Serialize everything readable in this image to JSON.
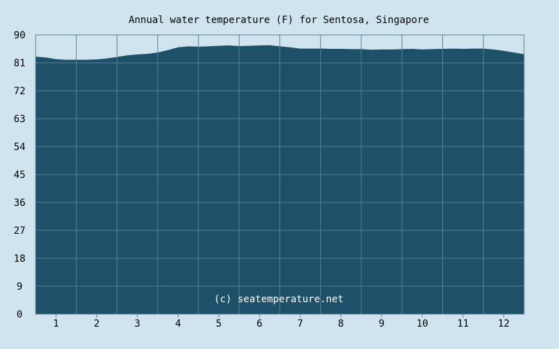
{
  "chart_data": {
    "type": "area",
    "title": "Annual water temperature (F) for Sentosa, Singapore",
    "watermark": "(c) seatemperature.net",
    "xlabel": "",
    "ylabel": "",
    "ylim": [
      0,
      90
    ],
    "y_ticks": [
      0,
      9,
      18,
      27,
      36,
      45,
      54,
      63,
      72,
      81,
      90
    ],
    "x_ticks": [
      "1",
      "2",
      "3",
      "4",
      "5",
      "6",
      "7",
      "8",
      "9",
      "10",
      "11",
      "12"
    ],
    "xlim": [
      0.5,
      12.5
    ],
    "grid": true,
    "colors": {
      "fill": "#1f5069",
      "background": "#cfe4ef",
      "grid": "#5a7f95"
    },
    "x": [
      0.5,
      0.75,
      1.0,
      1.25,
      1.5,
      1.75,
      2.0,
      2.25,
      2.5,
      2.75,
      3.0,
      3.25,
      3.5,
      3.75,
      4.0,
      4.25,
      4.5,
      4.75,
      5.0,
      5.25,
      5.5,
      5.75,
      6.0,
      6.25,
      6.5,
      6.75,
      7.0,
      7.25,
      7.5,
      7.75,
      8.0,
      8.25,
      8.5,
      8.75,
      9.0,
      9.25,
      9.5,
      9.75,
      10.0,
      10.25,
      10.5,
      10.75,
      11.0,
      11.25,
      11.5,
      11.75,
      12.0,
      12.25,
      12.5
    ],
    "y": [
      83.0,
      82.7,
      82.2,
      82.0,
      82.0,
      82.0,
      82.1,
      82.4,
      82.9,
      83.4,
      83.7,
      83.9,
      84.3,
      85.1,
      86.0,
      86.3,
      86.2,
      86.3,
      86.5,
      86.6,
      86.4,
      86.5,
      86.6,
      86.7,
      86.3,
      86.0,
      85.6,
      85.6,
      85.6,
      85.5,
      85.5,
      85.4,
      85.4,
      85.2,
      85.3,
      85.3,
      85.4,
      85.5,
      85.3,
      85.4,
      85.5,
      85.6,
      85.5,
      85.6,
      85.6,
      85.3,
      84.9,
      84.3,
      83.8
    ]
  }
}
